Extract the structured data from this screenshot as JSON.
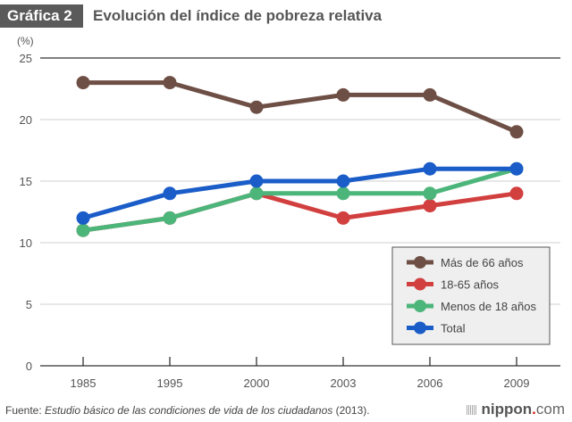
{
  "header": {
    "badge": "Gráfica 2",
    "title": "Evolución del índice de pobreza relativa"
  },
  "footer": {
    "source_prefix": "Fuente: ",
    "source_title": "Estudio básico de las condiciones de vida de los ciudadanos",
    "source_suffix": " (2013).",
    "brand_name": "nippon",
    "brand_dot": ".",
    "brand_tld": "com"
  },
  "chart_data": {
    "type": "line",
    "title": "Evolución del índice de pobreza relativa",
    "xlabel": "",
    "ylabel": "(%)",
    "categories": [
      "1985",
      "1995",
      "2000",
      "2003",
      "2006",
      "2009"
    ],
    "ylim": [
      0,
      25
    ],
    "yticks": [
      0,
      5,
      10,
      15,
      20,
      25
    ],
    "grid": true,
    "legend_position": "bottom-right",
    "series": [
      {
        "name": "Más de 66 años",
        "color": "#6e4f45",
        "values": [
          23,
          23,
          21,
          22,
          22,
          19
        ]
      },
      {
        "name": "18-65 años",
        "color": "#d23f3f",
        "values": [
          11,
          12,
          14,
          12,
          13,
          14
        ]
      },
      {
        "name": "Menos de 18 años",
        "color": "#4cb57a",
        "values": [
          11,
          12,
          14,
          14,
          14,
          16
        ]
      },
      {
        "name": "Total",
        "color": "#1a5cc8",
        "values": [
          12,
          14,
          15,
          15,
          16,
          16
        ]
      }
    ]
  }
}
